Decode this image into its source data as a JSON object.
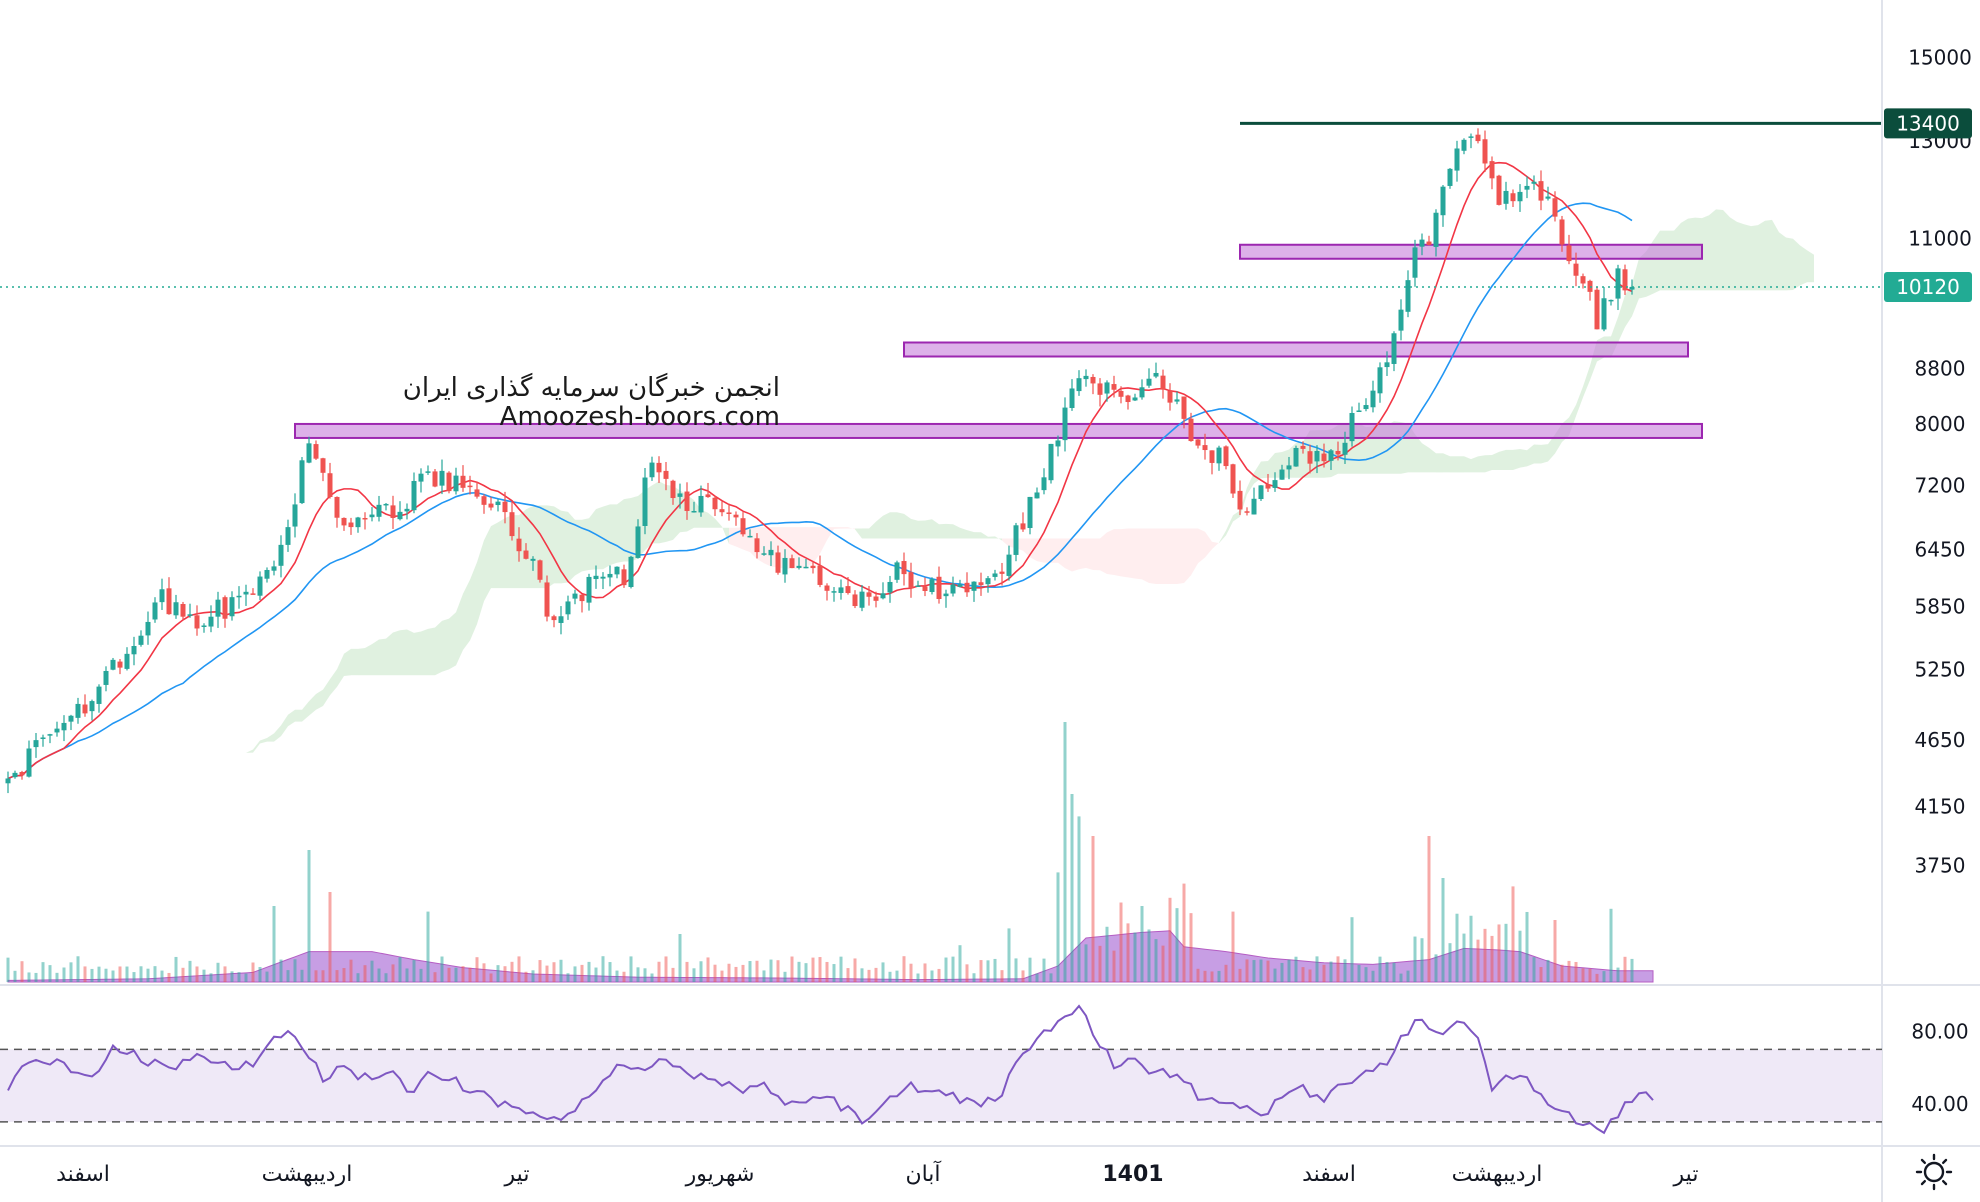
{
  "watermark": {
    "line1": "انجمن خبرگان سرمایه گذاری ایران",
    "line2": "Amoozesh-boors.com"
  },
  "colors": {
    "up": "#26a69a",
    "down": "#ef5350",
    "ma_fast": "#f23645",
    "ma_slow": "#2196f3",
    "zone_fill": "#c77ddb",
    "zone_stroke": "#9c27b0",
    "resistance": "#0b4d3c",
    "current_badge": "#22ab94",
    "rsi_line": "#7e57c2",
    "rsi_band": "#ede7f6",
    "volume_ma": "#b57edc"
  },
  "icons": {
    "settings": "sun-gear-icon"
  },
  "chart_data": {
    "type": "candlestick",
    "price_axis": {
      "ticks": [
        "15000",
        "13000",
        "11000",
        "8800",
        "8000",
        "7200",
        "6450",
        "5850",
        "5250",
        "4650",
        "4150",
        "3750"
      ],
      "scale": "log",
      "range": [
        3300,
        16000
      ]
    },
    "time_axis": {
      "labels": [
        {
          "label": "اسفند",
          "bold": false,
          "i": 5
        },
        {
          "label": "اردیبهشت",
          "bold": false,
          "i": 37
        },
        {
          "label": "تیر",
          "bold": false,
          "i": 67
        },
        {
          "label": "شهریور",
          "bold": false,
          "i": 96
        },
        {
          "label": "آبان",
          "bold": false,
          "i": 125
        },
        {
          "label": "1401",
          "bold": true,
          "i": 155
        },
        {
          "label": "اسفند",
          "bold": false,
          "i": 183
        },
        {
          "label": "اردیبهشت",
          "bold": false,
          "i": 207
        },
        {
          "label": "تیر",
          "bold": false,
          "i": 234
        }
      ]
    },
    "price_badges": [
      {
        "value": 13400,
        "label": "13400",
        "kind": "resistance"
      },
      {
        "value": 10120,
        "label": "10120",
        "kind": "last"
      }
    ],
    "horizontal_zones": [
      {
        "from": 7820,
        "to": 8000,
        "i_start": 41,
        "i_end": 242
      },
      {
        "from": 9000,
        "to": 9200,
        "i_start": 128,
        "i_end": 240
      },
      {
        "from": 10630,
        "to": 10880,
        "i_start": 176,
        "i_end": 242
      }
    ],
    "resistance_line": {
      "value": 13400,
      "i_start": 176,
      "i_end": 265
    },
    "anchors": [
      [
        0,
        4300
      ],
      [
        6,
        4700
      ],
      [
        12,
        5000
      ],
      [
        18,
        5500
      ],
      [
        22,
        5900
      ],
      [
        27,
        5700
      ],
      [
        33,
        5900
      ],
      [
        38,
        6300
      ],
      [
        43,
        7700
      ],
      [
        48,
        6700
      ],
      [
        55,
        6900
      ],
      [
        60,
        7300
      ],
      [
        66,
        7100
      ],
      [
        71,
        6900
      ],
      [
        74,
        6400
      ],
      [
        78,
        5700
      ],
      [
        83,
        6100
      ],
      [
        88,
        6200
      ],
      [
        92,
        7500
      ],
      [
        97,
        7000
      ],
      [
        103,
        6900
      ],
      [
        108,
        6400
      ],
      [
        113,
        6150
      ],
      [
        118,
        6100
      ],
      [
        122,
        5900
      ],
      [
        127,
        6200
      ],
      [
        132,
        6050
      ],
      [
        138,
        6000
      ],
      [
        142,
        6300
      ],
      [
        146,
        7000
      ],
      [
        150,
        7800
      ],
      [
        153,
        8800
      ],
      [
        156,
        8500
      ],
      [
        160,
        8400
      ],
      [
        164,
        8600
      ],
      [
        167,
        8200
      ],
      [
        170,
        7600
      ],
      [
        174,
        7500
      ],
      [
        177,
        6800
      ],
      [
        180,
        7300
      ],
      [
        184,
        7600
      ],
      [
        188,
        7450
      ],
      [
        191,
        7900
      ],
      [
        195,
        8500
      ],
      [
        198,
        9300
      ],
      [
        201,
        10600
      ],
      [
        204,
        11400
      ],
      [
        207,
        12700
      ],
      [
        210,
        13000
      ],
      [
        213,
        11800
      ],
      [
        216,
        11700
      ],
      [
        219,
        12000
      ],
      [
        222,
        10800
      ],
      [
        225,
        10200
      ],
      [
        227,
        9500
      ],
      [
        230,
        10300
      ],
      [
        232,
        10120
      ]
    ],
    "ma_fast_period": 9,
    "ma_slow_period": 26,
    "rsi": {
      "ticks": [
        "80.00",
        "40.00"
      ],
      "levels": [
        70,
        30
      ],
      "range": [
        20,
        100
      ],
      "anchors": [
        [
          0,
          47
        ],
        [
          3,
          65
        ],
        [
          6,
          63
        ],
        [
          9,
          60
        ],
        [
          12,
          55
        ],
        [
          15,
          70
        ],
        [
          18,
          68
        ],
        [
          21,
          62
        ],
        [
          24,
          60
        ],
        [
          27,
          68
        ],
        [
          30,
          62
        ],
        [
          33,
          60
        ],
        [
          36,
          65
        ],
        [
          38,
          75
        ],
        [
          40,
          83
        ],
        [
          42,
          70
        ],
        [
          45,
          55
        ],
        [
          48,
          60
        ],
        [
          52,
          52
        ],
        [
          55,
          58
        ],
        [
          58,
          44
        ],
        [
          60,
          60
        ],
        [
          63,
          54
        ],
        [
          66,
          48
        ],
        [
          70,
          40
        ],
        [
          74,
          34
        ],
        [
          78,
          30
        ],
        [
          81,
          36
        ],
        [
          84,
          48
        ],
        [
          87,
          62
        ],
        [
          90,
          58
        ],
        [
          93,
          66
        ],
        [
          96,
          60
        ],
        [
          99,
          55
        ],
        [
          102,
          52
        ],
        [
          105,
          45
        ],
        [
          108,
          50
        ],
        [
          111,
          40
        ],
        [
          114,
          42
        ],
        [
          117,
          45
        ],
        [
          120,
          36
        ],
        [
          123,
          30
        ],
        [
          126,
          42
        ],
        [
          129,
          50
        ],
        [
          132,
          48
        ],
        [
          135,
          45
        ],
        [
          138,
          40
        ],
        [
          142,
          45
        ],
        [
          145,
          70
        ],
        [
          148,
          78
        ],
        [
          151,
          88
        ],
        [
          153,
          92
        ],
        [
          155,
          80
        ],
        [
          158,
          62
        ],
        [
          161,
          62
        ],
        [
          164,
          58
        ],
        [
          167,
          56
        ],
        [
          170,
          45
        ],
        [
          173,
          38
        ],
        [
          176,
          38
        ],
        [
          179,
          32
        ],
        [
          182,
          45
        ],
        [
          185,
          48
        ],
        [
          188,
          44
        ],
        [
          191,
          50
        ],
        [
          194,
          56
        ],
        [
          197,
          64
        ],
        [
          200,
          80
        ],
        [
          202,
          88
        ],
        [
          204,
          78
        ],
        [
          206,
          84
        ],
        [
          208,
          82
        ],
        [
          210,
          75
        ],
        [
          212,
          50
        ],
        [
          215,
          56
        ],
        [
          218,
          50
        ],
        [
          220,
          42
        ],
        [
          223,
          34
        ],
        [
          226,
          28
        ],
        [
          228,
          24
        ],
        [
          231,
          38
        ],
        [
          233,
          46
        ],
        [
          235,
          42
        ]
      ]
    },
    "volume": {
      "spikes": [
        [
          38,
          200
        ],
        [
          43,
          400
        ],
        [
          46,
          250
        ],
        [
          60,
          180
        ],
        [
          96,
          100
        ],
        [
          136,
          60
        ],
        [
          143,
          120
        ],
        [
          150,
          320
        ],
        [
          151,
          900
        ],
        [
          152,
          600
        ],
        [
          153,
          520
        ],
        [
          155,
          450
        ],
        [
          162,
          200
        ],
        [
          168,
          280
        ],
        [
          175,
          180
        ],
        [
          192,
          160
        ],
        [
          203,
          450
        ],
        [
          205,
          300
        ],
        [
          215,
          270
        ],
        [
          221,
          150
        ],
        [
          229,
          190
        ]
      ],
      "ma_anchors": [
        [
          0,
          0.02
        ],
        [
          20,
          0.04
        ],
        [
          35,
          0.12
        ],
        [
          43,
          0.38
        ],
        [
          52,
          0.38
        ],
        [
          58,
          0.28
        ],
        [
          65,
          0.18
        ],
        [
          75,
          0.1
        ],
        [
          90,
          0.06
        ],
        [
          110,
          0.05
        ],
        [
          130,
          0.03
        ],
        [
          145,
          0.04
        ],
        [
          150,
          0.2
        ],
        [
          154,
          0.55
        ],
        [
          162,
          0.62
        ],
        [
          166,
          0.64
        ],
        [
          168,
          0.44
        ],
        [
          174,
          0.38
        ],
        [
          180,
          0.3
        ],
        [
          188,
          0.24
        ],
        [
          195,
          0.22
        ],
        [
          203,
          0.28
        ],
        [
          208,
          0.42
        ],
        [
          213,
          0.4
        ],
        [
          216,
          0.38
        ],
        [
          222,
          0.2
        ],
        [
          230,
          0.14
        ],
        [
          235,
          0.14
        ]
      ]
    }
  }
}
